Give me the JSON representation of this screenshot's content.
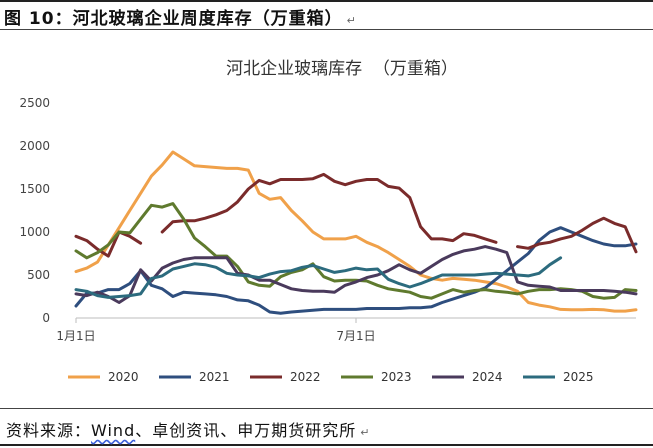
{
  "figure": {
    "title_prefix": "图 10：",
    "title_main": "河北玻璃企业周度库存（万重箱）",
    "paragraph_mark": "↵"
  },
  "source": {
    "prefix": "资料来源：",
    "parts": [
      "Wind",
      "、",
      "卓创资讯",
      "、",
      "申万期货研究所"
    ],
    "paragraph_mark": "↵"
  },
  "chart_data": {
    "type": "line",
    "title": "河北企业玻璃库存  （万重箱）",
    "xlabel": "",
    "ylabel": "",
    "x_range": [
      1,
      53
    ],
    "x_ticks": [
      {
        "value": 1,
        "label": "1月1日"
      },
      {
        "value": 27,
        "label": "7月1日"
      }
    ],
    "ylim": [
      0,
      2500
    ],
    "y_ticks": [
      0,
      500,
      1000,
      1500,
      2000,
      2500
    ],
    "y_tick_labels": [
      "0",
      "500",
      "1000",
      "1500",
      "2000",
      "2500"
    ],
    "grid": false,
    "legend_position": "bottom",
    "series": [
      {
        "name": "2020",
        "color": "#f0a14a",
        "values": [
          540,
          580,
          650,
          850,
          1050,
          1250,
          1450,
          1650,
          1780,
          1930,
          1850,
          1770,
          1760,
          1750,
          1740,
          1740,
          1720,
          1450,
          1380,
          1400,
          1250,
          1130,
          1000,
          920,
          920,
          920,
          950,
          880,
          830,
          760,
          680,
          600,
          500,
          460,
          440,
          460,
          450,
          440,
          420,
          400,
          360,
          310,
          180,
          150,
          130,
          100,
          95,
          95,
          100,
          95,
          80,
          80,
          95
        ]
      },
      {
        "name": "2021",
        "color": "#2e4e7e",
        "values": [
          140,
          290,
          290,
          330,
          330,
          400,
          550,
          380,
          340,
          250,
          300,
          290,
          280,
          270,
          250,
          210,
          200,
          150,
          70,
          55,
          70,
          80,
          90,
          100,
          100,
          100,
          100,
          110,
          110,
          110,
          110,
          120,
          120,
          130,
          180,
          220,
          260,
          300,
          350,
          450,
          550,
          650,
          750,
          900,
          1000,
          1050,
          1000,
          950,
          900,
          860,
          840,
          840,
          860
        ]
      },
      {
        "name": "2022",
        "color": "#7a2b2b",
        "values": [
          950,
          900,
          800,
          720,
          1000,
          950,
          870,
          null,
          1000,
          1120,
          1130,
          1130,
          1160,
          1200,
          1250,
          1350,
          1500,
          1600,
          1560,
          1610,
          1610,
          1610,
          1620,
          1670,
          1590,
          1550,
          1590,
          1610,
          1610,
          1530,
          1510,
          1400,
          1060,
          920,
          920,
          900,
          980,
          960,
          920,
          880,
          null,
          830,
          810,
          860,
          880,
          920,
          950,
          1020,
          1100,
          1160,
          1100,
          1060,
          770
        ]
      },
      {
        "name": "2023",
        "color": "#5f7a2e",
        "values": [
          780,
          700,
          760,
          850,
          1000,
          990,
          1150,
          1310,
          1290,
          1330,
          1150,
          930,
          830,
          720,
          720,
          600,
          420,
          380,
          370,
          480,
          530,
          560,
          630,
          480,
          430,
          440,
          440,
          430,
          380,
          340,
          320,
          300,
          250,
          230,
          280,
          330,
          300,
          320,
          330,
          310,
          300,
          280,
          310,
          330,
          330,
          340,
          330,
          310,
          250,
          230,
          240,
          330,
          320
        ]
      },
      {
        "name": "2024",
        "color": "#4a3a5c",
        "values": [
          280,
          260,
          300,
          250,
          180,
          260,
          560,
          430,
          580,
          640,
          680,
          700,
          700,
          700,
          700,
          520,
          500,
          440,
          440,
          390,
          340,
          320,
          310,
          310,
          300,
          380,
          420,
          470,
          500,
          550,
          620,
          560,
          520,
          600,
          680,
          740,
          780,
          800,
          830,
          800,
          760,
          420,
          380,
          370,
          360,
          320,
          320,
          320,
          320,
          320,
          310,
          300,
          280
        ]
      },
      {
        "name": "2025",
        "color": "#2c6b7e",
        "values": [
          330,
          310,
          260,
          240,
          250,
          260,
          280,
          460,
          490,
          570,
          600,
          630,
          620,
          590,
          520,
          500,
          490,
          470,
          510,
          540,
          550,
          590,
          610,
          570,
          530,
          550,
          580,
          560,
          570,
          450,
          400,
          360,
          400,
          450,
          500,
          500,
          500,
          500,
          510,
          520,
          510,
          500,
          490,
          520,
          620,
          700
        ]
      }
    ]
  }
}
